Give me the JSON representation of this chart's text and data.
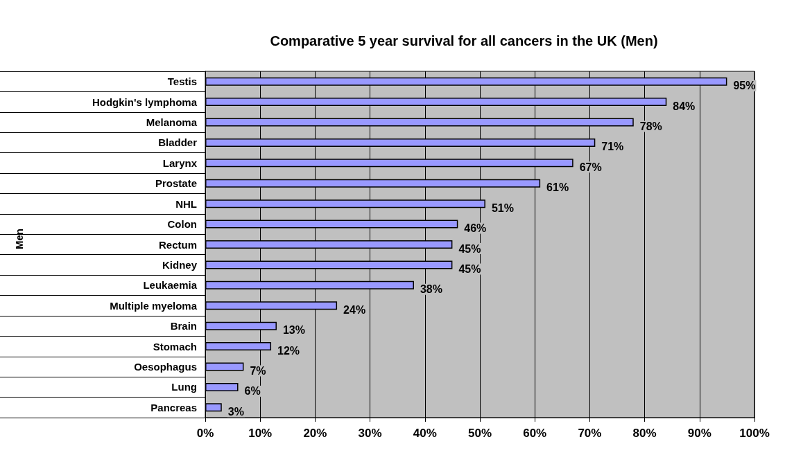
{
  "chart_data": {
    "type": "bar",
    "orientation": "horizontal",
    "title": "Comparative 5 year survival for all cancers in the UK (Men)",
    "annotations": [
      "Men"
    ],
    "categories": [
      "Testis",
      "Hodgkin's lymphoma",
      "Melanoma",
      "Bladder",
      "Larynx",
      "Prostate",
      "NHL",
      "Colon",
      "Rectum",
      "Kidney",
      "Leukaemia",
      "Multiple myeloma",
      "Brain",
      "Stomach",
      "Oesophagus",
      "Lung",
      "Pancreas"
    ],
    "values": [
      95,
      84,
      78,
      71,
      67,
      61,
      51,
      46,
      45,
      45,
      38,
      24,
      13,
      12,
      7,
      6,
      3
    ],
    "value_labels": [
      "95%",
      "84%",
      "78%",
      "71%",
      "67%",
      "61%",
      "51%",
      "46%",
      "45%",
      "45%",
      "38%",
      "24%",
      "13%",
      "12%",
      "7%",
      "6%",
      "3%"
    ],
    "color": "#9999ff",
    "xlim": [
      0,
      100
    ],
    "xticks": [
      {
        "value": 0,
        "label": "0%"
      },
      {
        "value": 10,
        "label": "10%"
      },
      {
        "value": 20,
        "label": "20%"
      },
      {
        "value": 30,
        "label": "30%"
      },
      {
        "value": 40,
        "label": "40%"
      },
      {
        "value": 50,
        "label": "50%"
      },
      {
        "value": 60,
        "label": "60%"
      },
      {
        "value": 70,
        "label": "70%"
      },
      {
        "value": 80,
        "label": "80%"
      },
      {
        "value": 90,
        "label": "90%"
      },
      {
        "value": 100,
        "label": "100%"
      }
    ],
    "grid": "x"
  }
}
